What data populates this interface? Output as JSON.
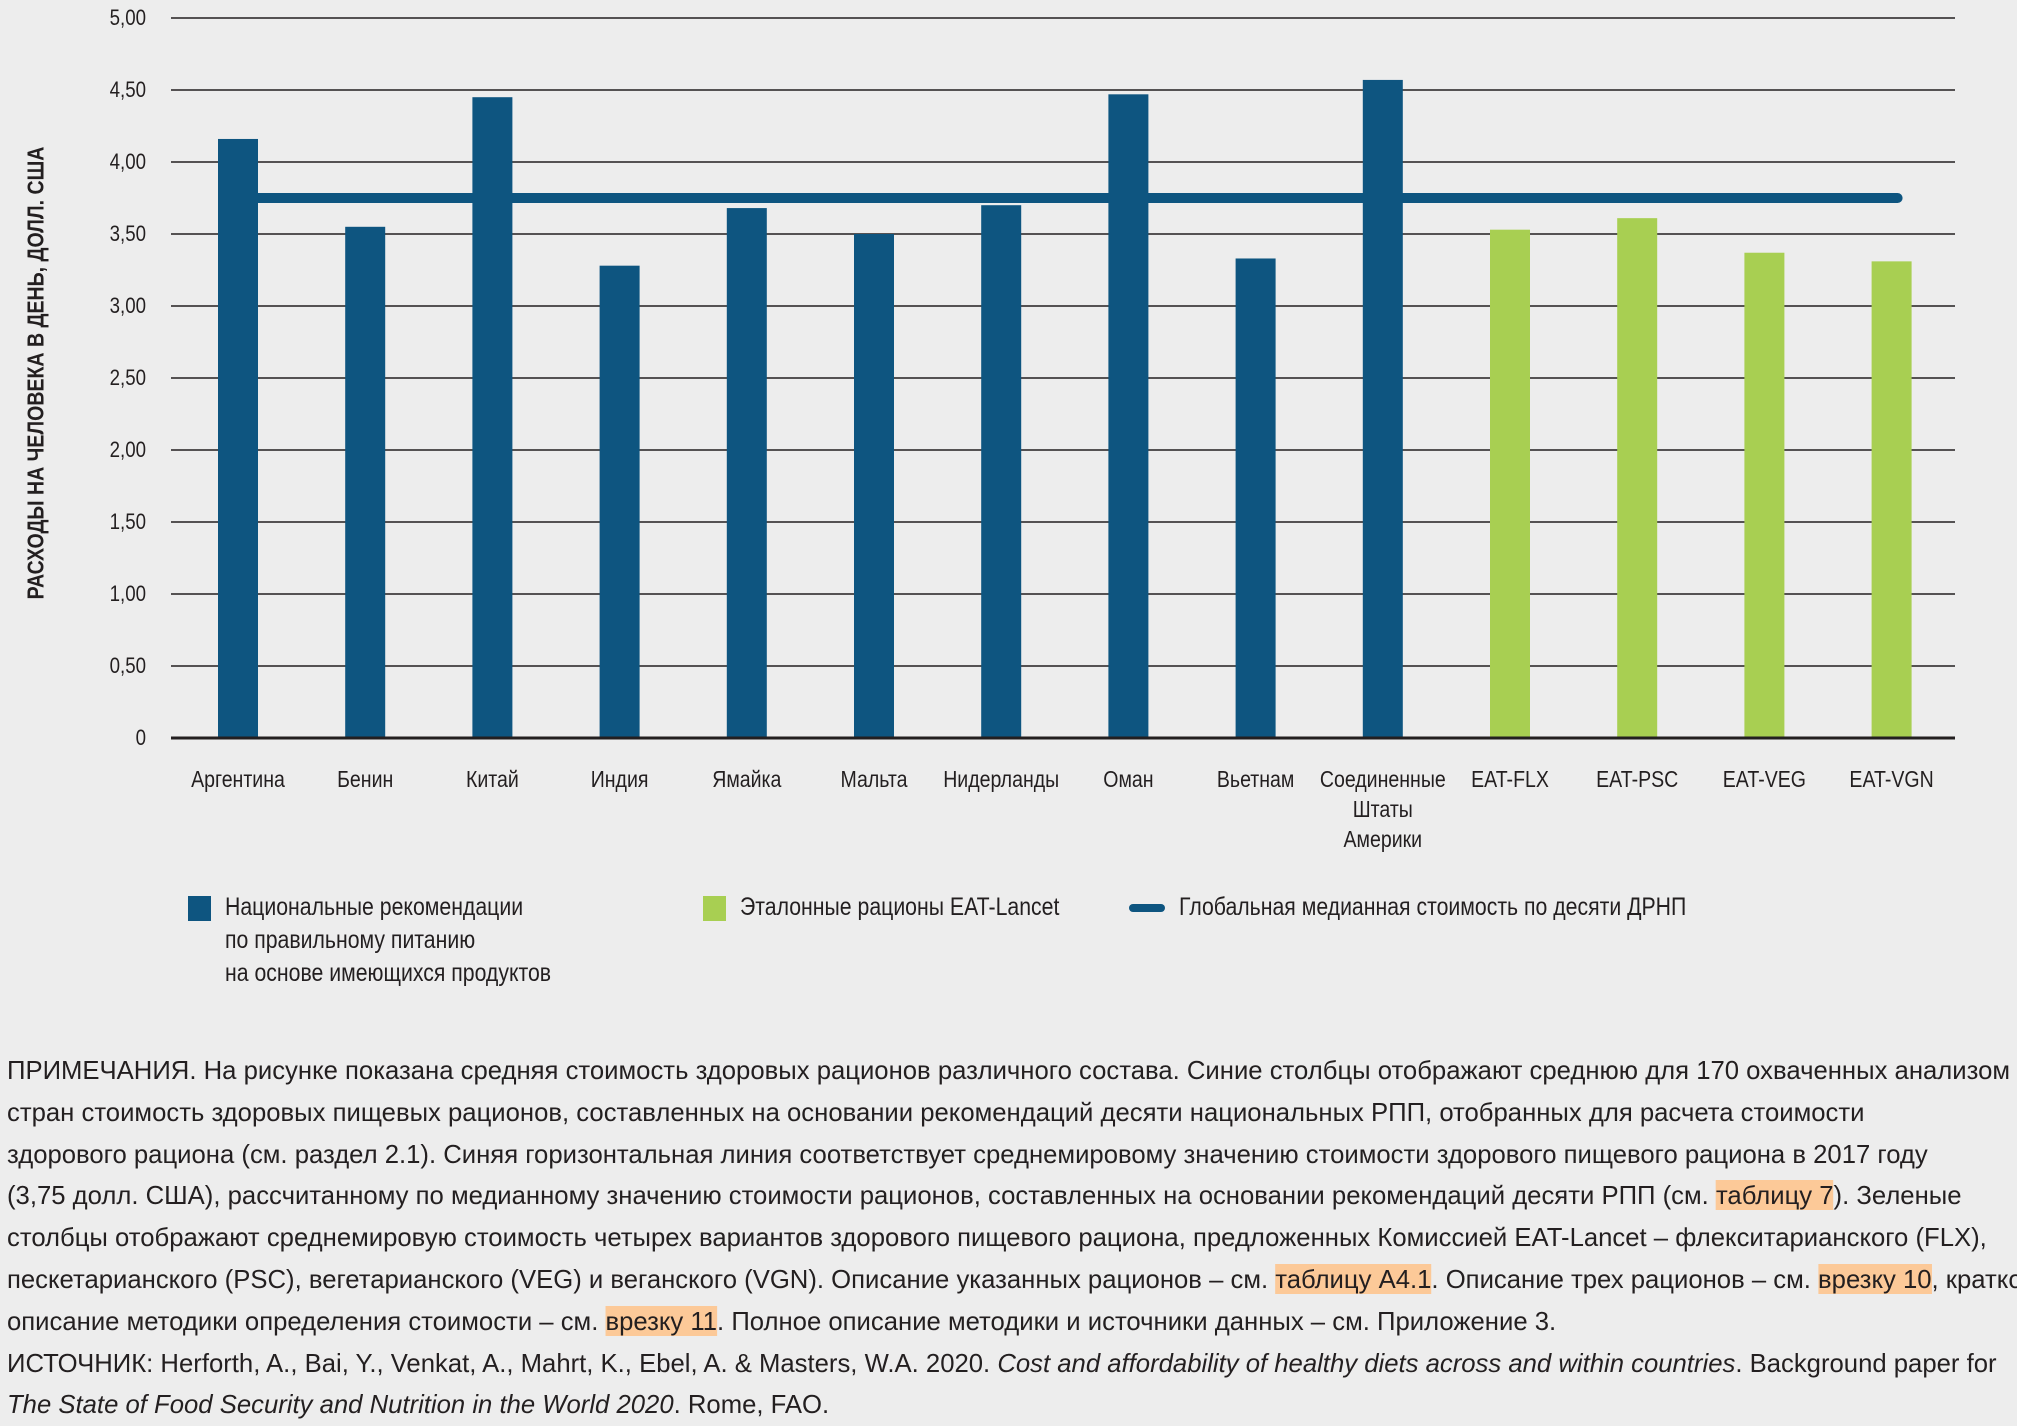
{
  "colors": {
    "national": "#0e5580",
    "eat": "#a8cf52",
    "median": "#0e5580",
    "grid": "#231f20",
    "highlight": "#fcc998"
  },
  "chart_data": {
    "type": "bar",
    "title": "",
    "xlabel": "",
    "ylabel": "РАСХОДЫ НА ЧЕЛОВЕКА В ДЕНЬ, ДОЛЛ. США",
    "ylim": [
      0,
      5
    ],
    "yticks": [
      "0",
      "0,50",
      "1,00",
      "1,50",
      "2,00",
      "2,50",
      "3,00",
      "3,50",
      "4,00",
      "4,50",
      "5,00"
    ],
    "ytick_values": [
      0,
      0.5,
      1,
      1.5,
      2,
      2.5,
      3,
      3.5,
      4,
      4.5,
      5
    ],
    "grid": true,
    "categories": [
      [
        "Аргентина"
      ],
      [
        "Бенин"
      ],
      [
        "Китай"
      ],
      [
        "Индия"
      ],
      [
        "Ямайка"
      ],
      [
        "Мальта"
      ],
      [
        "Нидерланды"
      ],
      [
        "Оман"
      ],
      [
        "Вьетнам"
      ],
      [
        "Соединенные",
        "Штаты",
        "Америки"
      ],
      [
        "EAT-FLX"
      ],
      [
        "EAT-PSC"
      ],
      [
        "EAT-VEG"
      ],
      [
        "EAT-VGN"
      ]
    ],
    "values": [
      4.16,
      3.55,
      4.45,
      3.28,
      3.68,
      3.5,
      3.7,
      4.47,
      3.33,
      4.57,
      3.53,
      3.61,
      3.37,
      3.31
    ],
    "series_of_bar": [
      "national",
      "national",
      "national",
      "national",
      "national",
      "national",
      "national",
      "national",
      "national",
      "national",
      "eat",
      "eat",
      "eat",
      "eat"
    ],
    "series": [
      {
        "name": "Национальные рекомендации по правильному питанию на основе имеющихся продуктов",
        "key": "national"
      },
      {
        "name": "Эталонные рационы EAT-Lancet",
        "key": "eat"
      }
    ],
    "reference_line": {
      "name": "Глобальная медианная стоимость по десяти ДРНП",
      "value": 3.75
    },
    "legend_placement": "bottom"
  },
  "legend": {
    "national": [
      "Национальные рекомендации",
      "по правильному питанию",
      "на основе имеющихся продуктов"
    ],
    "eat": "Эталонные рационы EAT-Lancet",
    "median": "Глобальная медианная стоимость по десяти ДРНП"
  },
  "notes": [
    [
      {
        "t": "ПРИМЕЧАНИЯ. На рисунке показана средняя стоимость здоровых рационов различного состава. Синие столбцы отображают среднюю для 170 охваченных анализом"
      }
    ],
    [
      {
        "t": "стран стоимость здоровых пищевых рационов, составленных на основании рекомендаций десяти национальных РПП, отобранных для расчета стоимости"
      }
    ],
    [
      {
        "t": "здорового рациона (см. раздел 2.1). Синяя горизонтальная линия соответствует среднемировому значению стоимости здорового пищевого рациона в 2017 году"
      }
    ],
    [
      {
        "t": "(3,75 долл. США), рассчитанному по медианному значению стоимости рационов, составленных на основании рекомендаций десяти РПП (см. "
      },
      {
        "t": "таблицу 7",
        "hl": true
      },
      {
        "t": "). Зеленые"
      }
    ],
    [
      {
        "t": "столбцы отображают среднемировую стоимость четырех вариантов здорового пищевого рациона, предложенных Комиссией EAT-Lancet – флекситарианского (FLX),"
      }
    ],
    [
      {
        "t": "пескетарианского (PSC), вегетарианского (VEG) и веганского (VGN). Описание указанных рационов – см. "
      },
      {
        "t": "таблицу А4.1",
        "hl": true
      },
      {
        "t": ". Описание трех рационов – см. "
      },
      {
        "t": "врезку 10",
        "hl": true
      },
      {
        "t": ", краткое"
      }
    ],
    [
      {
        "t": "описание методики определения стоимости – см. "
      },
      {
        "t": "врезку 11",
        "hl": true
      },
      {
        "t": ". Полное описание методики и источники данных – см. Приложение 3."
      }
    ],
    [
      {
        "t": "ИСТОЧНИК: Herforth, A., Bai, Y., Venkat, A., Mahrt, K., Ebel, A. & Masters, W.A. 2020. "
      },
      {
        "t": "Cost and affordability of healthy diets across and within countries",
        "it": true
      },
      {
        "t": ". Background paper for"
      }
    ],
    [
      {
        "t": "The State of Food Security and Nutrition in the World 2020",
        "it": true
      },
      {
        "t": ". Rome, FAO."
      }
    ]
  ]
}
